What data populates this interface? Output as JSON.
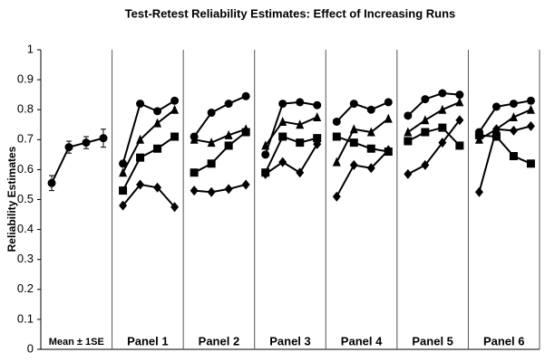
{
  "chart_data": {
    "type": "line",
    "title": "Test-Retest Reliability Estimates: Effect of Increasing Runs",
    "ylabel": "Reliability Estimates",
    "ylim": [
      0,
      1
    ],
    "yticks": [
      0,
      0.1,
      0.2,
      0.3,
      0.4,
      0.5,
      0.6,
      0.7,
      0.8,
      0.9,
      1
    ],
    "color": "#000000",
    "groups": [
      {
        "label": "Mean ± 1SE",
        "series": [
          {
            "marker": "circle",
            "values": [
              0.555,
              0.675,
              0.69,
              0.705
            ],
            "errors": [
              0.025,
              0.02,
              0.02,
              0.03
            ]
          }
        ]
      },
      {
        "label": "Panel 1",
        "series": [
          {
            "marker": "circle",
            "values": [
              0.62,
              0.82,
              0.795,
              0.83
            ]
          },
          {
            "marker": "triangle",
            "values": [
              0.59,
              0.7,
              0.755,
              0.8
            ]
          },
          {
            "marker": "square",
            "values": [
              0.53,
              0.64,
              0.67,
              0.71
            ]
          },
          {
            "marker": "diamond",
            "values": [
              0.48,
              0.55,
              0.54,
              0.475
            ]
          }
        ]
      },
      {
        "label": "Panel 2",
        "series": [
          {
            "marker": "circle",
            "values": [
              0.71,
              0.79,
              0.82,
              0.845
            ]
          },
          {
            "marker": "triangle",
            "values": [
              0.7,
              0.69,
              0.715,
              0.735
            ]
          },
          {
            "marker": "square",
            "values": [
              0.59,
              0.62,
              0.68,
              0.725
            ]
          },
          {
            "marker": "diamond",
            "values": [
              0.53,
              0.525,
              0.535,
              0.55
            ]
          }
        ]
      },
      {
        "label": "Panel 3",
        "series": [
          {
            "marker": "circle",
            "values": [
              0.65,
              0.82,
              0.825,
              0.815
            ]
          },
          {
            "marker": "triangle",
            "values": [
              0.68,
              0.76,
              0.75,
              0.775
            ]
          },
          {
            "marker": "square",
            "values": [
              0.59,
              0.71,
              0.69,
              0.705
            ]
          },
          {
            "marker": "diamond",
            "values": [
              0.585,
              0.625,
              0.59,
              0.685
            ]
          }
        ]
      },
      {
        "label": "Panel 4",
        "series": [
          {
            "marker": "circle",
            "values": [
              0.76,
              0.82,
              0.8,
              0.825
            ]
          },
          {
            "marker": "triangle",
            "values": [
              0.625,
              0.735,
              0.725,
              0.77
            ]
          },
          {
            "marker": "square",
            "values": [
              0.71,
              0.69,
              0.67,
              0.66
            ]
          },
          {
            "marker": "diamond",
            "values": [
              0.51,
              0.615,
              0.605,
              0.665
            ]
          }
        ]
      },
      {
        "label": "Panel 5",
        "series": [
          {
            "marker": "circle",
            "values": [
              0.78,
              0.835,
              0.855,
              0.85
            ]
          },
          {
            "marker": "triangle",
            "values": [
              0.725,
              0.765,
              0.8,
              0.825
            ]
          },
          {
            "marker": "square",
            "values": [
              0.695,
              0.725,
              0.74,
              0.68
            ]
          },
          {
            "marker": "diamond",
            "values": [
              0.585,
              0.615,
              0.69,
              0.765
            ]
          }
        ]
      },
      {
        "label": "Panel 6",
        "series": [
          {
            "marker": "circle",
            "values": [
              0.725,
              0.81,
              0.82,
              0.83
            ]
          },
          {
            "marker": "triangle",
            "values": [
              0.7,
              0.735,
              0.775,
              0.8
            ]
          },
          {
            "marker": "square",
            "values": [
              0.715,
              0.71,
              0.645,
              0.62
            ]
          },
          {
            "marker": "diamond",
            "values": [
              0.525,
              0.735,
              0.73,
              0.745
            ]
          }
        ]
      }
    ]
  }
}
